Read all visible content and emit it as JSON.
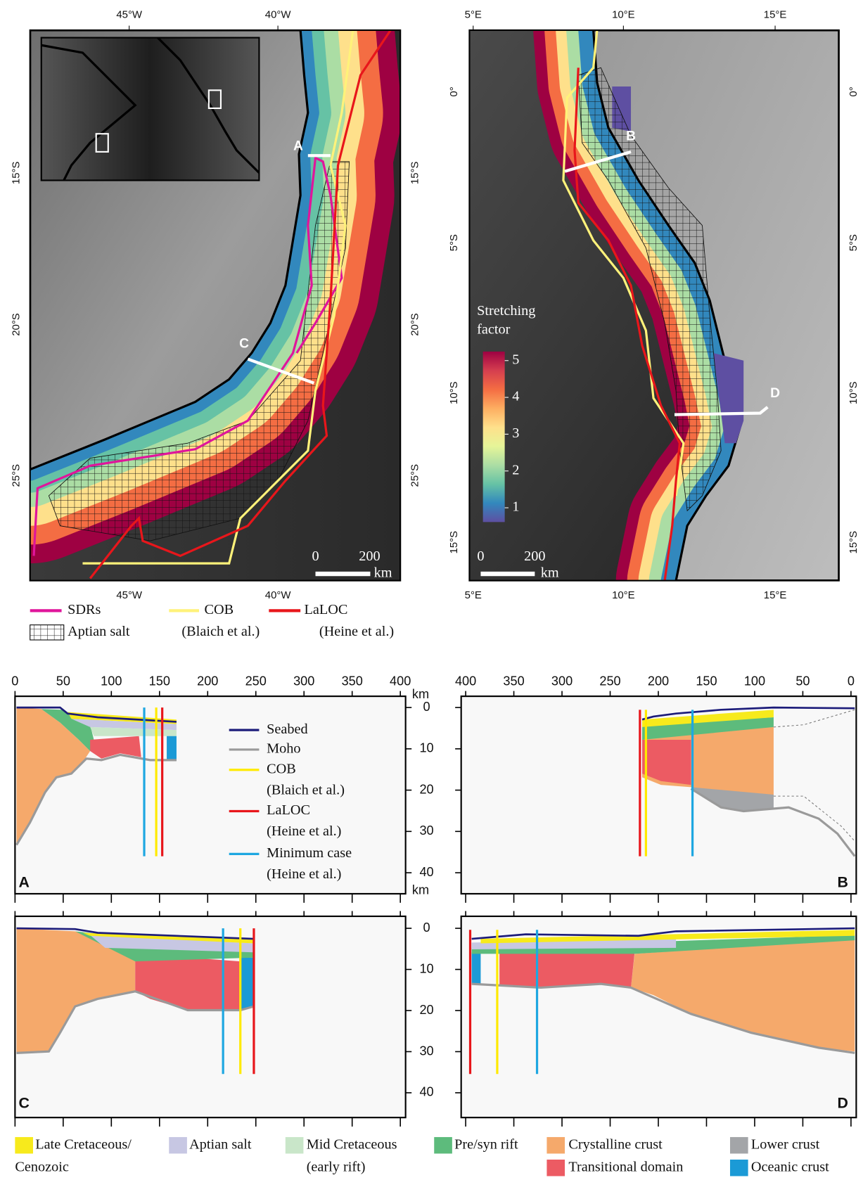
{
  "maps": [
    {
      "x_labels": [
        "45°W",
        "40°W"
      ],
      "y_labels": [
        "15°S",
        "20°S",
        "25°S"
      ],
      "profiles": [
        "A",
        "C"
      ],
      "scale_bar": {
        "start": 0,
        "end": 200,
        "unit": "km"
      }
    },
    {
      "x_labels": [
        "5°E",
        "10°E",
        "15°E"
      ],
      "y_labels": [
        "0°",
        "5°S",
        "10°S",
        "15°S"
      ],
      "profiles": [
        "B",
        "D"
      ],
      "scale_bar": {
        "start": 0,
        "end": 200,
        "unit": "km"
      },
      "colorbar": {
        "title": [
          "Stretching",
          "factor"
        ],
        "ticks": [
          1,
          2,
          3,
          4,
          5
        ],
        "colors": [
          "#5e4fa2",
          "#3288bd",
          "#66c2a5",
          "#abdda4",
          "#e6f598",
          "#fee08b",
          "#fdae61",
          "#f46d43",
          "#d53e4f",
          "#9e0142"
        ]
      }
    }
  ],
  "map_legend": [
    {
      "label": [
        "SDRs"
      ],
      "color": "#e0159b"
    },
    {
      "label": [
        "COB",
        "(Blaich et al.)"
      ],
      "color": "#fff27a"
    },
    {
      "label": [
        "LaLOC",
        "(Heine et al.)"
      ],
      "color": "#e8161b"
    },
    {
      "label": [
        "Aptian salt"
      ]
    }
  ],
  "sections": {
    "distance_ticks": [
      0,
      50,
      100,
      150,
      200,
      250,
      300,
      350,
      400
    ],
    "depth_ticks": [
      0,
      10,
      20,
      30,
      40
    ],
    "depth_unit": "km",
    "panels": [
      "A",
      "B",
      "C",
      "D"
    ],
    "line_legend": [
      {
        "label": [
          "Seabed"
        ],
        "color": "#1c1c7a"
      },
      {
        "label": [
          "Moho"
        ],
        "color": "#9a9a9a"
      },
      {
        "label": [
          "COB",
          "(Blaich et al.)"
        ],
        "color": "#ffea00"
      },
      {
        "label": [
          "LaLOC",
          "(Heine et al.)"
        ],
        "color": "#e8161b"
      },
      {
        "label": [
          "Minimum case",
          "(Heine et al.)"
        ],
        "color": "#1ea7e1"
      }
    ],
    "unit_legend": [
      {
        "label": [
          "Late Cretaceous/",
          "Cenozoic"
        ],
        "color": "#f7ea1c"
      },
      {
        "label": [
          "Aptian salt"
        ],
        "color": "#c7c7e3"
      },
      {
        "label": [
          "Mid Cretaceous",
          "(early rift)"
        ],
        "color": "#c9e6c9"
      },
      {
        "label": [
          "Pre/syn rift"
        ],
        "color": "#5dbb7c"
      },
      {
        "label": [
          "Crystalline crust"
        ],
        "color": "#f5a96b"
      },
      {
        "label": [
          "Transitional domain"
        ],
        "color": "#ec5b63"
      },
      {
        "label": [
          "Lower crust"
        ],
        "color": "#a3a5a8"
      },
      {
        "label": [
          "Oceanic crust"
        ],
        "color": "#1b9ad6"
      }
    ]
  }
}
